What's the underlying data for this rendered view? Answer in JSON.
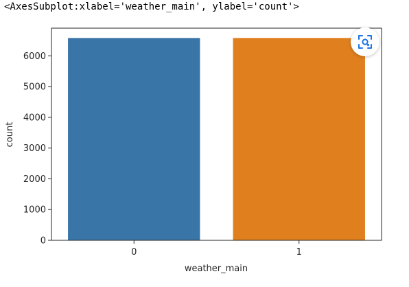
{
  "output_repr": "<AxesSubplot:xlabel='weather_main', ylabel='count'>",
  "colors": {
    "series": [
      "#3a75a8",
      "#e07f1e"
    ],
    "axis": "#262626"
  },
  "icons": {
    "lens": "image-search-icon"
  },
  "chart_data": {
    "type": "bar",
    "title": "",
    "xlabel": "weather_main",
    "ylabel": "count",
    "categories": [
      "0",
      "1"
    ],
    "values": [
      6580,
      6580
    ],
    "ylim": [
      0,
      6900
    ],
    "yticks": [
      0,
      1000,
      2000,
      3000,
      4000,
      5000,
      6000
    ],
    "grid": false,
    "legend": false
  }
}
